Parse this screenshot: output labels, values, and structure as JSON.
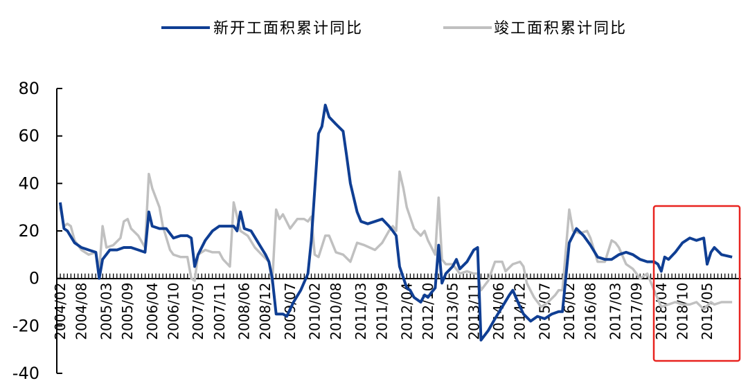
{
  "chart_data": {
    "type": "line",
    "title": "",
    "xlabel": "",
    "ylabel": "",
    "ylim": [
      -40,
      80
    ],
    "yticks": [
      "80",
      "60",
      "40",
      "20",
      "0",
      "-20",
      "-40"
    ],
    "xticks": [
      "2004/02",
      "2004/08",
      "2005/03",
      "2005/09",
      "2006/04",
      "2006/10",
      "2007/05",
      "2007/11",
      "2008/06",
      "2008/12",
      "2009/07",
      "2010/02",
      "2010/08",
      "2011/03",
      "2011/09",
      "2012/04",
      "2012/10",
      "2013/05",
      "2013/11",
      "2014/06",
      "2014/12",
      "2015/07",
      "2016/02",
      "2016/08",
      "2017/03",
      "2017/09",
      "2018/04",
      "2018/10",
      "2019/05"
    ],
    "grid": false,
    "legend_position": "top",
    "highlight_box_color": "#e8231f",
    "series": [
      {
        "name": "新开工面积累计同比",
        "color": "#0f3e93",
        "values": [
          [
            2004.08,
            32
          ],
          [
            2004.17,
            21
          ],
          [
            2004.25,
            20
          ],
          [
            2004.42,
            15
          ],
          [
            2004.58,
            13
          ],
          [
            2004.75,
            12
          ],
          [
            2004.92,
            11
          ],
          [
            2005.0,
            0
          ],
          [
            2005.08,
            8
          ],
          [
            2005.25,
            12
          ],
          [
            2005.42,
            12
          ],
          [
            2005.58,
            13
          ],
          [
            2005.75,
            13
          ],
          [
            2005.92,
            12
          ],
          [
            2006.08,
            11
          ],
          [
            2006.17,
            28
          ],
          [
            2006.25,
            22
          ],
          [
            2006.42,
            21
          ],
          [
            2006.58,
            21
          ],
          [
            2006.75,
            17
          ],
          [
            2006.92,
            18
          ],
          [
            2007.08,
            18
          ],
          [
            2007.17,
            17
          ],
          [
            2007.25,
            5
          ],
          [
            2007.33,
            10
          ],
          [
            2007.5,
            16
          ],
          [
            2007.67,
            20
          ],
          [
            2007.83,
            22
          ],
          [
            2008.0,
            22
          ],
          [
            2008.17,
            22
          ],
          [
            2008.25,
            20
          ],
          [
            2008.33,
            28
          ],
          [
            2008.42,
            21
          ],
          [
            2008.58,
            20
          ],
          [
            2008.75,
            15
          ],
          [
            2008.92,
            10
          ],
          [
            2009.0,
            7
          ],
          [
            2009.08,
            0
          ],
          [
            2009.17,
            -15
          ],
          [
            2009.33,
            -15
          ],
          [
            2009.42,
            -16
          ],
          [
            2009.58,
            -10
          ],
          [
            2009.75,
            -5
          ],
          [
            2009.92,
            2
          ],
          [
            2010.0,
            16
          ],
          [
            2010.17,
            61
          ],
          [
            2010.25,
            64
          ],
          [
            2010.33,
            73
          ],
          [
            2010.42,
            68
          ],
          [
            2010.58,
            65
          ],
          [
            2010.75,
            62
          ],
          [
            2010.83,
            52
          ],
          [
            2010.92,
            40
          ],
          [
            2011.08,
            28
          ],
          [
            2011.17,
            24
          ],
          [
            2011.33,
            23
          ],
          [
            2011.5,
            24
          ],
          [
            2011.67,
            25
          ],
          [
            2011.83,
            22
          ],
          [
            2011.92,
            20
          ],
          [
            2012.0,
            18
          ],
          [
            2012.08,
            5
          ],
          [
            2012.25,
            -4
          ],
          [
            2012.33,
            -5
          ],
          [
            2012.42,
            -8
          ],
          [
            2012.58,
            -10
          ],
          [
            2012.67,
            -7
          ],
          [
            2012.75,
            -8
          ],
          [
            2012.83,
            -6
          ],
          [
            2012.92,
            -4
          ],
          [
            2013.0,
            14
          ],
          [
            2013.08,
            -2
          ],
          [
            2013.17,
            2
          ],
          [
            2013.33,
            5
          ],
          [
            2013.42,
            8
          ],
          [
            2013.5,
            4
          ],
          [
            2013.67,
            7
          ],
          [
            2013.83,
            12
          ],
          [
            2013.92,
            13
          ],
          [
            2014.0,
            -26
          ],
          [
            2014.17,
            -22
          ],
          [
            2014.33,
            -17
          ],
          [
            2014.5,
            -12
          ],
          [
            2014.67,
            -7
          ],
          [
            2014.75,
            -5
          ],
          [
            2014.92,
            -12
          ],
          [
            2015.0,
            -15
          ],
          [
            2015.17,
            -18
          ],
          [
            2015.33,
            -16
          ],
          [
            2015.5,
            -17
          ],
          [
            2015.67,
            -15
          ],
          [
            2015.83,
            -14
          ],
          [
            2015.92,
            -14
          ],
          [
            2016.08,
            15
          ],
          [
            2016.25,
            21
          ],
          [
            2016.42,
            18
          ],
          [
            2016.58,
            14
          ],
          [
            2016.75,
            9
          ],
          [
            2016.92,
            8
          ],
          [
            2017.08,
            8
          ],
          [
            2017.25,
            10
          ],
          [
            2017.42,
            11
          ],
          [
            2017.58,
            10
          ],
          [
            2017.75,
            8
          ],
          [
            2017.92,
            7
          ],
          [
            2018.08,
            7
          ],
          [
            2018.17,
            6
          ],
          [
            2018.25,
            3
          ],
          [
            2018.33,
            9
          ],
          [
            2018.42,
            8
          ],
          [
            2018.58,
            11
          ],
          [
            2018.75,
            15
          ],
          [
            2018.92,
            17
          ],
          [
            2019.08,
            16
          ],
          [
            2019.25,
            17
          ],
          [
            2019.33,
            6
          ],
          [
            2019.42,
            11
          ],
          [
            2019.5,
            13
          ],
          [
            2019.67,
            10
          ],
          [
            2019.92,
            9
          ]
        ]
      },
      {
        "name": "竣工面积累计同比",
        "color": "#c0c0c0",
        "values": [
          [
            2004.08,
            30
          ],
          [
            2004.17,
            22
          ],
          [
            2004.25,
            23
          ],
          [
            2004.33,
            22
          ],
          [
            2004.42,
            16
          ],
          [
            2004.58,
            12
          ],
          [
            2004.75,
            10
          ],
          [
            2004.92,
            11
          ],
          [
            2005.0,
            3
          ],
          [
            2005.08,
            22
          ],
          [
            2005.17,
            13
          ],
          [
            2005.33,
            14
          ],
          [
            2005.5,
            17
          ],
          [
            2005.58,
            24
          ],
          [
            2005.67,
            25
          ],
          [
            2005.75,
            21
          ],
          [
            2005.92,
            18
          ],
          [
            2006.08,
            13
          ],
          [
            2006.17,
            44
          ],
          [
            2006.25,
            38
          ],
          [
            2006.42,
            30
          ],
          [
            2006.5,
            22
          ],
          [
            2006.67,
            12
          ],
          [
            2006.75,
            10
          ],
          [
            2006.92,
            9
          ],
          [
            2007.08,
            9
          ],
          [
            2007.17,
            0
          ],
          [
            2007.25,
            -1
          ],
          [
            2007.33,
            10
          ],
          [
            2007.5,
            12
          ],
          [
            2007.67,
            11
          ],
          [
            2007.83,
            11
          ],
          [
            2007.92,
            8
          ],
          [
            2008.08,
            5
          ],
          [
            2008.17,
            32
          ],
          [
            2008.33,
            20
          ],
          [
            2008.5,
            18
          ],
          [
            2008.67,
            13
          ],
          [
            2008.83,
            10
          ],
          [
            2009.0,
            7
          ],
          [
            2009.08,
            -2
          ],
          [
            2009.17,
            29
          ],
          [
            2009.25,
            25
          ],
          [
            2009.33,
            27
          ],
          [
            2009.5,
            21
          ],
          [
            2009.67,
            25
          ],
          [
            2009.83,
            25
          ],
          [
            2009.92,
            24
          ],
          [
            2010.0,
            26
          ],
          [
            2010.08,
            10
          ],
          [
            2010.17,
            9
          ],
          [
            2010.33,
            18
          ],
          [
            2010.42,
            18
          ],
          [
            2010.58,
            11
          ],
          [
            2010.75,
            10
          ],
          [
            2010.92,
            7
          ],
          [
            2011.08,
            15
          ],
          [
            2011.25,
            14
          ],
          [
            2011.5,
            12
          ],
          [
            2011.67,
            15
          ],
          [
            2011.83,
            20
          ],
          [
            2011.92,
            22
          ],
          [
            2012.0,
            20
          ],
          [
            2012.08,
            45
          ],
          [
            2012.17,
            38
          ],
          [
            2012.25,
            30
          ],
          [
            2012.42,
            21
          ],
          [
            2012.58,
            18
          ],
          [
            2012.67,
            20
          ],
          [
            2012.75,
            16
          ],
          [
            2012.92,
            10
          ],
          [
            2013.0,
            34
          ],
          [
            2013.08,
            8
          ],
          [
            2013.17,
            6
          ],
          [
            2013.33,
            6
          ],
          [
            2013.5,
            2
          ],
          [
            2013.67,
            3
          ],
          [
            2013.83,
            2
          ],
          [
            2013.92,
            2
          ],
          [
            2014.0,
            -5
          ],
          [
            2014.17,
            -1
          ],
          [
            2014.33,
            7
          ],
          [
            2014.5,
            7
          ],
          [
            2014.58,
            3
          ],
          [
            2014.75,
            6
          ],
          [
            2014.92,
            7
          ],
          [
            2015.0,
            5
          ],
          [
            2015.08,
            -2
          ],
          [
            2015.25,
            -8
          ],
          [
            2015.42,
            -12
          ],
          [
            2015.58,
            -10
          ],
          [
            2015.75,
            -7
          ],
          [
            2015.83,
            -5
          ],
          [
            2015.92,
            -5
          ],
          [
            2016.08,
            29
          ],
          [
            2016.17,
            20
          ],
          [
            2016.33,
            19
          ],
          [
            2016.5,
            20
          ],
          [
            2016.58,
            17
          ],
          [
            2016.75,
            7
          ],
          [
            2016.92,
            7
          ],
          [
            2017.08,
            16
          ],
          [
            2017.17,
            15
          ],
          [
            2017.25,
            13
          ],
          [
            2017.42,
            6
          ],
          [
            2017.58,
            4
          ],
          [
            2017.75,
            0
          ],
          [
            2017.92,
            2
          ],
          [
            2018.08,
            -5
          ],
          [
            2018.25,
            -12
          ],
          [
            2018.42,
            -11
          ],
          [
            2018.58,
            -10
          ],
          [
            2018.75,
            -11
          ],
          [
            2018.92,
            -11
          ],
          [
            2019.08,
            -10
          ],
          [
            2019.25,
            -13
          ],
          [
            2019.42,
            -10
          ],
          [
            2019.5,
            -11
          ],
          [
            2019.67,
            -10
          ],
          [
            2019.92,
            -10
          ]
        ]
      }
    ]
  }
}
